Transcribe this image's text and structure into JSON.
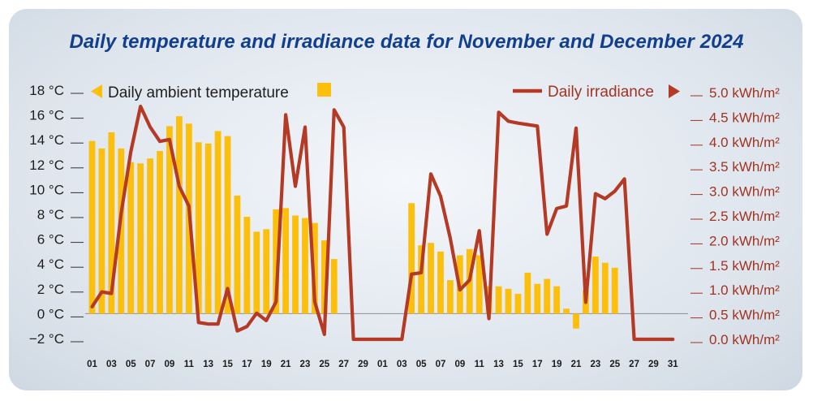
{
  "title": "Daily temperature and irradiance data for November and December 2024",
  "colors": {
    "temperature": "#fbbf0c",
    "irradiance": "#b53a25",
    "title": "#123f8d",
    "leftAxis": "#1e1e1e",
    "rightAxis": "#a13322"
  },
  "legend": {
    "temperature": "Daily ambient temperature",
    "irradiance": "Daily irradiance"
  },
  "chart_data": {
    "type": "bar+line",
    "title": "Daily temperature and irradiance data for November and December 2024",
    "x_tick_labels": [
      "01",
      "03",
      "05",
      "07",
      "09",
      "11",
      "13",
      "15",
      "17",
      "19",
      "21",
      "23",
      "25",
      "27",
      "29",
      "01",
      "03",
      "05",
      "07",
      "09",
      "11",
      "13",
      "15",
      "17",
      "19",
      "21",
      "23",
      "25",
      "27",
      "29",
      "31"
    ],
    "left_axis": {
      "label": "Daily ambient temperature",
      "ticks": [
        "18 °C",
        "16 °C",
        "14 °C",
        "12 °C",
        "10 °C",
        "8 °C",
        "6 °C",
        "4 °C",
        "2 °C",
        "0 °C",
        "−2 °C"
      ],
      "ylim": [
        -2,
        18
      ]
    },
    "right_axis": {
      "label": "Daily irradiance",
      "ticks": [
        "5.0 kWh/m²",
        "4.5 kWh/m²",
        "4.0 kWh/m²",
        "3.5 kWh/m²",
        "3.0 kWh/m²",
        "2.5 kWh/m²",
        "2.0 kWh/m²",
        "1.5 kWh/m²",
        "1.0 kWh/m²",
        "0.5 kWh/m²",
        "0.0 kWh/m²"
      ],
      "ylim": [
        0.0,
        5.0
      ]
    },
    "series": [
      {
        "name": "Daily ambient temperature",
        "kind": "bar",
        "unit": "°C",
        "values": [
          13.9,
          13.3,
          14.6,
          13.3,
          12.2,
          12.1,
          12.5,
          13.1,
          15.1,
          15.9,
          15.3,
          13.8,
          13.7,
          14.7,
          14.3,
          9.5,
          7.8,
          6.6,
          6.8,
          8.4,
          8.5,
          7.9,
          7.7,
          7.3,
          5.9,
          4.4,
          null,
          null,
          null,
          null,
          null,
          null,
          null,
          8.9,
          5.5,
          5.7,
          5.0,
          2.7,
          4.7,
          5.2,
          4.7,
          2.2,
          2.2,
          2.0,
          1.6,
          3.3,
          2.4,
          2.8,
          2.2,
          0.4,
          -1.2,
          1.9,
          4.6,
          4.1,
          3.7,
          null,
          null,
          null,
          null,
          null,
          null
        ]
      },
      {
        "name": "Daily irradiance",
        "kind": "line",
        "unit": "kWh/m²",
        "values": [
          0.66,
          0.96,
          0.93,
          2.55,
          3.8,
          4.72,
          4.3,
          4.01,
          4.05,
          3.1,
          2.7,
          0.34,
          0.31,
          0.31,
          1.03,
          0.17,
          0.26,
          0.53,
          0.38,
          0.76,
          4.55,
          3.1,
          4.3,
          0.76,
          0.1,
          4.65,
          4.3,
          0.0,
          0.0,
          0.0,
          0.0,
          0.0,
          0.0,
          1.32,
          1.35,
          3.35,
          2.9,
          2.05,
          1.0,
          1.2,
          2.2,
          0.42,
          4.6,
          4.42,
          4.38,
          4.35,
          4.32,
          2.13,
          2.65,
          2.7,
          4.28,
          0.75,
          2.95,
          2.85,
          3.0,
          3.25,
          0.0,
          0.0,
          0.0,
          0.0,
          0.0
        ]
      }
    ]
  }
}
